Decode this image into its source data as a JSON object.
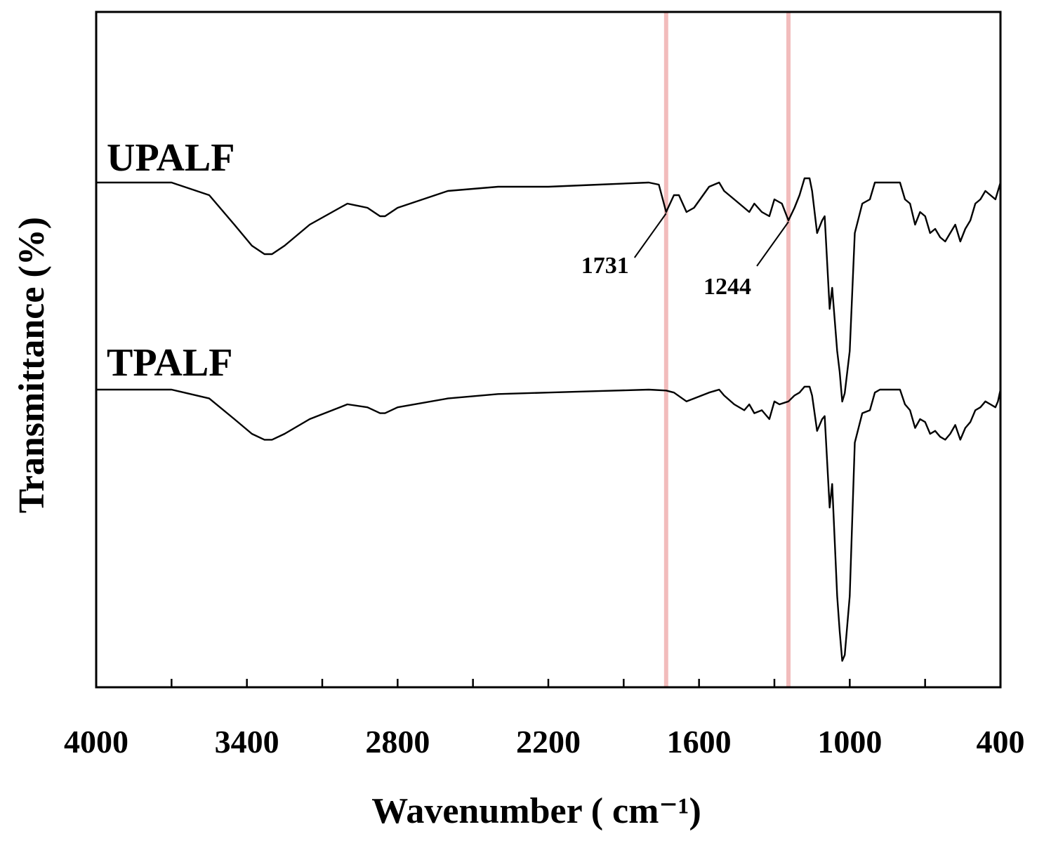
{
  "chart_data": {
    "type": "line",
    "title": "",
    "xlabel": "Wavenumber ( cm⁻¹)",
    "ylabel": "Transmittance (%)",
    "xlim": [
      4000,
      400
    ],
    "x_reversed": true,
    "xticks": [
      4000,
      3400,
      2800,
      2200,
      1600,
      1000,
      400
    ],
    "yticks_shown": false,
    "grid": false,
    "band_color": "#f2bcbc",
    "line_color": "#000000",
    "series": [
      {
        "name": "UPALF",
        "x": [
          4000,
          3700,
          3550,
          3450,
          3380,
          3330,
          3300,
          3250,
          3150,
          3000,
          2920,
          2870,
          2850,
          2800,
          2600,
          2400,
          2200,
          2000,
          1800,
          1760,
          1731,
          1700,
          1680,
          1650,
          1620,
          1560,
          1520,
          1500,
          1460,
          1420,
          1400,
          1380,
          1350,
          1320,
          1300,
          1270,
          1244,
          1220,
          1200,
          1180,
          1160,
          1150,
          1130,
          1110,
          1100,
          1080,
          1070,
          1050,
          1040,
          1030,
          1020,
          1000,
          980,
          950,
          920,
          900,
          880,
          850,
          800,
          780,
          760,
          740,
          720,
          700,
          680,
          660,
          640,
          620,
          600,
          580,
          560,
          540,
          520,
          500,
          480,
          460,
          440,
          420,
          410,
          400
        ],
        "y": [
          100,
          100,
          97,
          90,
          85,
          83,
          83,
          85,
          90,
          95,
          94,
          92,
          92,
          94,
          98,
          99,
          99,
          99.5,
          100,
          99.5,
          93,
          97,
          97,
          93,
          94,
          99,
          100,
          98,
          96,
          94,
          93,
          95,
          93,
          92,
          96,
          95,
          91,
          94,
          97,
          101,
          101,
          98,
          88,
          91,
          92,
          70,
          75,
          60,
          55,
          48,
          50,
          60,
          88,
          95,
          96,
          100,
          100,
          100,
          100,
          96,
          95,
          90,
          93,
          92,
          88,
          89,
          87,
          86,
          88,
          90,
          86,
          89,
          91,
          95,
          96,
          98,
          97,
          96,
          98,
          100
        ]
      },
      {
        "name": "TPALF",
        "x": [
          4000,
          3700,
          3550,
          3450,
          3380,
          3330,
          3300,
          3250,
          3150,
          3000,
          2920,
          2870,
          2850,
          2800,
          2600,
          2400,
          2200,
          2000,
          1800,
          1731,
          1700,
          1650,
          1620,
          1560,
          1520,
          1500,
          1460,
          1420,
          1400,
          1380,
          1350,
          1320,
          1300,
          1280,
          1244,
          1220,
          1200,
          1180,
          1160,
          1150,
          1130,
          1110,
          1100,
          1080,
          1070,
          1050,
          1040,
          1030,
          1020,
          1000,
          980,
          950,
          920,
          900,
          880,
          850,
          800,
          780,
          760,
          740,
          720,
          700,
          680,
          660,
          640,
          620,
          600,
          580,
          560,
          540,
          520,
          500,
          480,
          460,
          440,
          420,
          410,
          400
        ],
        "y": [
          100,
          100,
          97,
          90,
          85,
          83,
          83,
          85,
          90,
          95,
          94,
          92,
          92,
          94,
          97,
          98.5,
          99,
          99.5,
          100,
          99.7,
          99,
          96,
          97,
          99,
          100,
          98,
          95,
          93,
          95,
          92,
          93,
          90,
          96,
          95,
          96,
          98,
          99,
          101,
          101,
          98,
          86,
          90,
          91,
          60,
          68,
          30,
          18,
          8,
          10,
          30,
          82,
          92,
          93,
          99,
          100,
          100,
          100,
          95,
          93,
          87,
          90,
          89,
          85,
          86,
          84,
          83,
          85,
          88,
          83,
          87,
          89,
          93,
          94,
          96,
          95,
          94,
          96,
          100
        ]
      }
    ],
    "series_offsets": [
      0,
      0
    ],
    "highlight_bands": [
      1731,
      1244
    ],
    "annotations": [
      {
        "text": "1731",
        "x": 1731,
        "series": 0
      },
      {
        "text": "1244",
        "x": 1244,
        "series": 0
      }
    ]
  }
}
